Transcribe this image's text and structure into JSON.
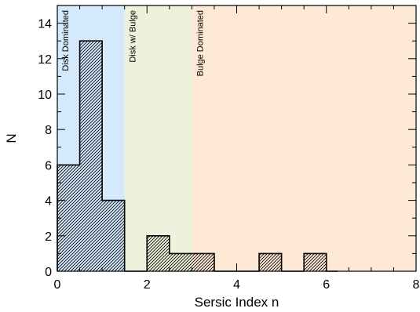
{
  "chart_data": {
    "type": "bar",
    "subtype": "histogram",
    "xlabel": "Sersic Index n",
    "ylabel": "N",
    "xlim": [
      0,
      8
    ],
    "ylim": [
      0,
      15
    ],
    "xticks": [
      0,
      2,
      4,
      6,
      8
    ],
    "yticks": [
      0,
      2,
      4,
      6,
      8,
      10,
      12,
      14
    ],
    "bin_width": 0.5,
    "bins": [
      {
        "x0": 0.0,
        "x1": 0.5,
        "count": 6
      },
      {
        "x0": 0.5,
        "x1": 1.0,
        "count": 13
      },
      {
        "x0": 1.0,
        "x1": 1.5,
        "count": 4
      },
      {
        "x0": 1.5,
        "x1": 2.0,
        "count": 0
      },
      {
        "x0": 2.0,
        "x1": 2.5,
        "count": 2
      },
      {
        "x0": 2.5,
        "x1": 3.0,
        "count": 1
      },
      {
        "x0": 3.0,
        "x1": 3.5,
        "count": 1
      },
      {
        "x0": 3.5,
        "x1": 4.0,
        "count": 0
      },
      {
        "x0": 4.0,
        "x1": 4.5,
        "count": 0
      },
      {
        "x0": 4.5,
        "x1": 5.0,
        "count": 1
      },
      {
        "x0": 5.0,
        "x1": 5.5,
        "count": 0
      },
      {
        "x0": 5.5,
        "x1": 6.0,
        "count": 1
      }
    ],
    "histogram_end": 6.25,
    "regions": [
      {
        "label": "Disk Dominated",
        "x0": 0,
        "x1": 1.5,
        "color": "#d4eafc"
      },
      {
        "label": "Disk w/ Bulge",
        "x0": 1.5,
        "x1": 3.0,
        "color": "#edf2dc"
      },
      {
        "label": "Bulge Dominated",
        "x0": 3.0,
        "x1": 8.0,
        "color": "#fde9d6"
      }
    ],
    "fill_pattern": "hatched",
    "hatch_color": "#000000",
    "grid": false
  }
}
